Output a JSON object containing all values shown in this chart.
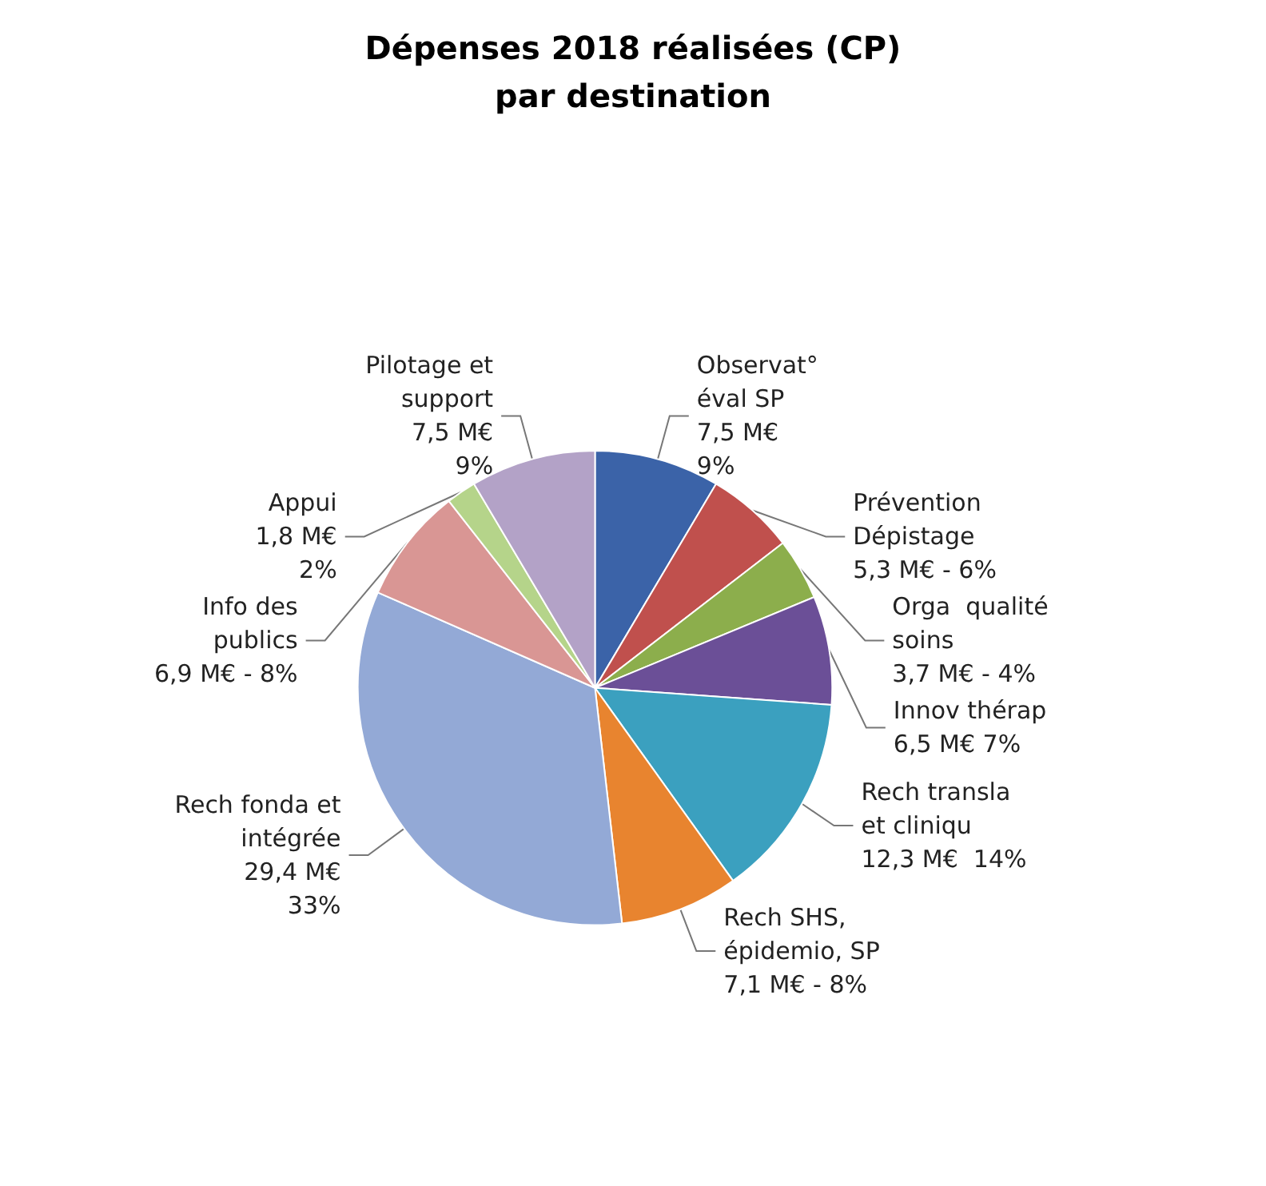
{
  "chart_data": {
    "type": "pie",
    "title": "Dépenses 2018 réalisées (CP)\npar destination",
    "categories": [
      "Observat°\néval SP",
      "Prévention\nDépistage",
      "Orga  qualité\nsoins",
      "Innov thérap",
      "Rech transla\net cliniqu",
      "Rech SHS,\népidemio, SP",
      "Rech fonda et\nintégrée",
      "Info des\npublics",
      "Appui",
      "Pilotage et\nsupport"
    ],
    "values": [
      7.5,
      5.3,
      3.7,
      6.5,
      12.3,
      7.1,
      29.4,
      6.9,
      1.8,
      7.5
    ],
    "value_labels": [
      "7,5 M€\n9%",
      "5,3 M€ - 6%",
      "3,7 M€ - 4%",
      "6,5 M€ 7%",
      "12,3 M€  14%",
      "7,1 M€ - 8%",
      "29,4 M€\n33%",
      "6,9 M€ - 8%",
      "1,8 M€\n2%",
      "7,5 M€\n9%"
    ],
    "colors": [
      "#3b63a8",
      "#c0504d",
      "#8cae4c",
      "#6b4f97",
      "#3ba0bf",
      "#e8842f",
      "#93a9d6",
      "#d99694",
      "#b5d48a",
      "#b3a2c7"
    ],
    "legend": false
  }
}
